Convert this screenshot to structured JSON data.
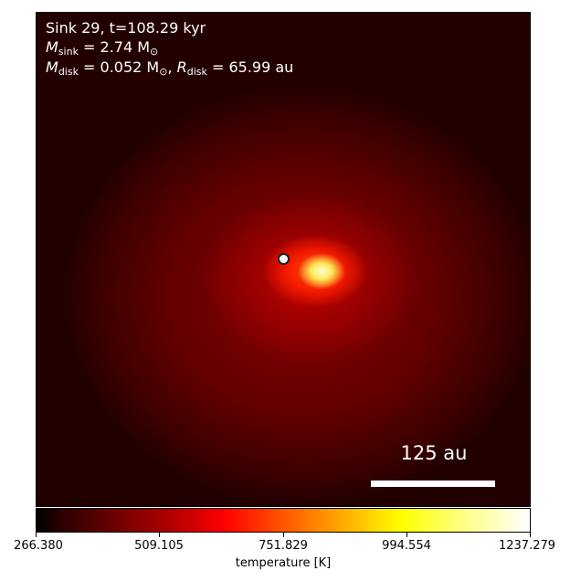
{
  "annotations": {
    "sink_name": "Sink 29",
    "time": "t=108.29 kyr",
    "m_sink_symbol": "M",
    "m_sink_sub": "sink",
    "m_sink_value": " = 2.74 M",
    "m_sink_unit_sub": "⊙",
    "m_disk_symbol": "M",
    "m_disk_sub": "disk",
    "m_disk_value": " = 0.052 M",
    "m_disk_unit_sub": "⊙",
    "separator": ", ",
    "r_disk_symbol": "R",
    "r_disk_sub": "disk",
    "r_disk_value": " = 65.99 au"
  },
  "scale_bar": {
    "label": "125 au"
  },
  "colorbar": {
    "label": "temperature [K]",
    "colormap": "hot",
    "ticks": [
      "266.380",
      "509.105",
      "751.829",
      "994.554",
      "1237.279"
    ]
  },
  "colors": {
    "marker_fill": "#ffffff",
    "marker_edge": "#222222",
    "annotation_text": "#ffffff"
  }
}
